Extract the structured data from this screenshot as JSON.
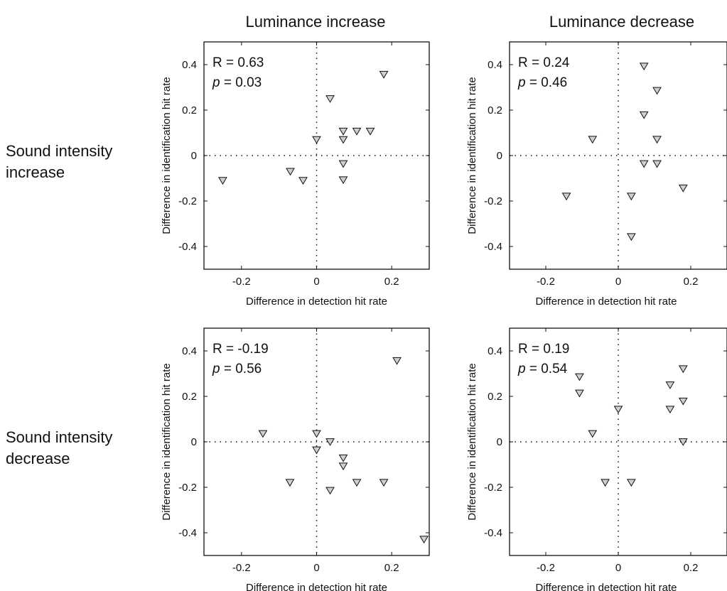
{
  "column_titles": [
    "Luminance increase",
    "Luminance decrease"
  ],
  "row_titles": [
    [
      "Sound intensity",
      "increase"
    ],
    [
      "Sound intensity",
      "decrease"
    ]
  ],
  "colors": {
    "marker_fill": "#cfcfcf",
    "marker_stroke": "#111111",
    "axes": "#111111"
  },
  "chart_data": [
    {
      "type": "scatter",
      "row": 0,
      "col": 0,
      "title": "",
      "xlabel": "Difference in detection hit rate",
      "ylabel": "Difference in identification hit rate",
      "xlim": [
        -0.3,
        0.3
      ],
      "ylim": [
        -0.5,
        0.5
      ],
      "xticks": [
        -0.2,
        0,
        0.2
      ],
      "xtick_labels": [
        "-0.2",
        "0",
        "0.2"
      ],
      "yticks": [
        -0.4,
        -0.2,
        0,
        0.2,
        0.4
      ],
      "ytick_labels": [
        "-0.4",
        "-0.2",
        "0",
        "0.2",
        "0.4"
      ],
      "marker": "triangle-down",
      "stats": {
        "r_text": "R = 0.63",
        "p_label": "p",
        "p_text": " = 0.03"
      },
      "points": [
        {
          "x": -0.25,
          "y": -0.11
        },
        {
          "x": -0.07,
          "y": -0.07
        },
        {
          "x": -0.036,
          "y": -0.11
        },
        {
          "x": 0.0,
          "y": 0.07
        },
        {
          "x": 0.036,
          "y": 0.25
        },
        {
          "x": 0.071,
          "y": 0.107
        },
        {
          "x": 0.071,
          "y": 0.07
        },
        {
          "x": 0.071,
          "y": -0.036
        },
        {
          "x": 0.071,
          "y": -0.107
        },
        {
          "x": 0.107,
          "y": 0.107
        },
        {
          "x": 0.143,
          "y": 0.107
        },
        {
          "x": 0.179,
          "y": 0.357
        }
      ]
    },
    {
      "type": "scatter",
      "row": 0,
      "col": 1,
      "title": "",
      "xlabel": "Difference in detection hit rate",
      "ylabel": "Difference in identification hit rate",
      "xlim": [
        -0.3,
        0.3
      ],
      "ylim": [
        -0.5,
        0.5
      ],
      "xticks": [
        -0.2,
        0,
        0.2
      ],
      "xtick_labels": [
        "-0.2",
        "0",
        "0.2"
      ],
      "yticks": [
        -0.4,
        -0.2,
        0,
        0.2,
        0.4
      ],
      "ytick_labels": [
        "-0.4",
        "-0.2",
        "0",
        "0.2",
        "0.4"
      ],
      "marker": "triangle-down",
      "stats": {
        "r_text": "R = 0.24",
        "p_label": "p",
        "p_text": " = 0.46"
      },
      "points": [
        {
          "x": -0.143,
          "y": -0.179
        },
        {
          "x": -0.071,
          "y": 0.071
        },
        {
          "x": 0.036,
          "y": -0.179
        },
        {
          "x": 0.036,
          "y": -0.357
        },
        {
          "x": 0.071,
          "y": 0.393
        },
        {
          "x": 0.071,
          "y": 0.179
        },
        {
          "x": 0.071,
          "y": -0.036
        },
        {
          "x": 0.107,
          "y": 0.286
        },
        {
          "x": 0.107,
          "y": 0.071
        },
        {
          "x": 0.107,
          "y": -0.036
        },
        {
          "x": 0.179,
          "y": -0.143
        }
      ]
    },
    {
      "type": "scatter",
      "row": 1,
      "col": 0,
      "title": "",
      "xlabel": "Difference in detection hit rate",
      "ylabel": "Difference in identification hit rate",
      "xlim": [
        -0.3,
        0.3
      ],
      "ylim": [
        -0.5,
        0.5
      ],
      "xticks": [
        -0.2,
        0,
        0.2
      ],
      "xtick_labels": [
        "-0.2",
        "0",
        "0.2"
      ],
      "yticks": [
        -0.4,
        -0.2,
        0,
        0.2,
        0.4
      ],
      "ytick_labels": [
        "-0.4",
        "-0.2",
        "0",
        "0.2",
        "0.4"
      ],
      "marker": "triangle-down",
      "stats": {
        "r_text": "R = -0.19",
        "p_label": "p",
        "p_text": " = 0.56"
      },
      "points": [
        {
          "x": -0.143,
          "y": 0.036
        },
        {
          "x": -0.071,
          "y": -0.179
        },
        {
          "x": 0.0,
          "y": 0.036
        },
        {
          "x": 0.0,
          "y": -0.036
        },
        {
          "x": 0.036,
          "y": 0.0
        },
        {
          "x": 0.036,
          "y": -0.214
        },
        {
          "x": 0.071,
          "y": -0.071
        },
        {
          "x": 0.071,
          "y": -0.107
        },
        {
          "x": 0.107,
          "y": -0.179
        },
        {
          "x": 0.179,
          "y": -0.179
        },
        {
          "x": 0.214,
          "y": 0.357
        },
        {
          "x": 0.286,
          "y": -0.429
        }
      ]
    },
    {
      "type": "scatter",
      "row": 1,
      "col": 1,
      "title": "",
      "xlabel": "Difference in detection hit rate",
      "ylabel": "Difference in identification hit rate",
      "xlim": [
        -0.3,
        0.3
      ],
      "ylim": [
        -0.5,
        0.5
      ],
      "xticks": [
        -0.2,
        0,
        0.2
      ],
      "xtick_labels": [
        "-0.2",
        "0",
        "0.2"
      ],
      "yticks": [
        -0.4,
        -0.2,
        0,
        0.2,
        0.4
      ],
      "ytick_labels": [
        "-0.4",
        "-0.2",
        "0",
        "0.2",
        "0.4"
      ],
      "marker": "triangle-down",
      "stats": {
        "r_text": "R = 0.19",
        "p_label": "p",
        "p_text": " = 0.54"
      },
      "points": [
        {
          "x": -0.107,
          "y": 0.286
        },
        {
          "x": -0.107,
          "y": 0.214
        },
        {
          "x": -0.071,
          "y": 0.036
        },
        {
          "x": -0.036,
          "y": -0.179
        },
        {
          "x": 0.0,
          "y": 0.143
        },
        {
          "x": 0.036,
          "y": -0.179
        },
        {
          "x": 0.143,
          "y": 0.25
        },
        {
          "x": 0.143,
          "y": 0.143
        },
        {
          "x": 0.179,
          "y": 0.321
        },
        {
          "x": 0.179,
          "y": 0.179
        },
        {
          "x": 0.179,
          "y": 0.0
        }
      ]
    }
  ]
}
